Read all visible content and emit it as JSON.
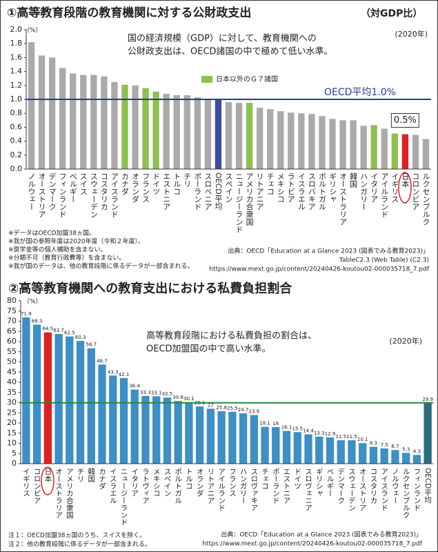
{
  "chart_data": [
    {
      "type": "bar",
      "title": "①高等教育段階の教育機関に対する公財政支出",
      "subtitle": "（対GDP比）",
      "unit": "（%）",
      "year": "(2020年)",
      "description": [
        "国の経済規模（GDP）に対して、教育機関への",
        "公財政支出は、OECD諸国の中で極めて低い水準。"
      ],
      "categories": [
        "ノルウェー",
        "オーストリア",
        "デンマーク",
        "フィンランド",
        "ベルギー",
        "スイス",
        "スウェーデン",
        "コスタリカ",
        "アイスランド",
        "カナダ",
        "オランダ",
        "フランス",
        "ドイツ",
        "エストニア",
        "トルコ",
        "チリ",
        "ポーランド",
        "スロベニア",
        "OECD平均",
        "スペイン",
        "ニュージーランド",
        "アメリカ合衆国",
        "リトアニア",
        "チェコ",
        "メキシコ",
        "ラトビア",
        "イスラエル",
        "スロバキア",
        "ポルトガル",
        "ギリシャ",
        "オーストラリア",
        "韓国",
        "ハンガリー",
        "イタリア",
        "アイルランド",
        "イギリス",
        "日本",
        "コロンビア",
        "ルクセンブルク"
      ],
      "values": [
        1.82,
        1.63,
        1.6,
        1.45,
        1.37,
        1.35,
        1.35,
        1.33,
        1.25,
        1.21,
        1.2,
        1.16,
        1.11,
        1.08,
        1.06,
        1.06,
        1.03,
        1.01,
        1.0,
        0.96,
        0.95,
        0.95,
        0.88,
        0.86,
        0.83,
        0.81,
        0.8,
        0.79,
        0.76,
        0.72,
        0.7,
        0.7,
        0.62,
        0.63,
        0.58,
        0.51,
        0.5,
        0.49,
        0.43
      ],
      "colors": [
        "#aaa",
        "#aaa",
        "#aaa",
        "#aaa",
        "#aaa",
        "#aaa",
        "#aaa",
        "#aaa",
        "#aaa",
        "#8dc050",
        "#aaa",
        "#8dc050",
        "#8dc050",
        "#aaa",
        "#aaa",
        "#aaa",
        "#aaa",
        "#aaa",
        "#3c4ea0",
        "#aaa",
        "#aaa",
        "#8dc050",
        "#aaa",
        "#aaa",
        "#aaa",
        "#aaa",
        "#aaa",
        "#aaa",
        "#aaa",
        "#aaa",
        "#aaa",
        "#aaa",
        "#aaa",
        "#8dc050",
        "#aaa",
        "#8dc050",
        "#e02020",
        "#aaa",
        "#aaa"
      ],
      "value_labels": [
        null,
        null,
        null,
        null,
        null,
        null,
        null,
        null,
        null,
        null,
        null,
        null,
        null,
        null,
        null,
        null,
        null,
        null,
        null,
        null,
        null,
        null,
        null,
        null,
        null,
        null,
        null,
        null,
        null,
        null,
        null,
        null,
        null,
        null,
        null,
        null,
        "0.5%",
        null,
        null
      ],
      "ylim": [
        0,
        2
      ],
      "yticks": [
        {
          "value": 0,
          "label": "0.0"
        },
        0.2,
        0.4,
        0.6,
        0.8,
        {
          "value": 1,
          "label": "1.0"
        },
        1.2,
        1.4,
        1.6,
        1.8,
        {
          "value": 2,
          "label": "2.0"
        }
      ],
      "reference_line": {
        "value": 1.0,
        "label": "OECD平均1.0%",
        "color": "#2b3a8f"
      },
      "legend": [
        {
          "name": "日本以外のＧ７諸国",
          "color": "#8dc050"
        }
      ],
      "notes": [
        "※データはOECD加盟38ヵ国。",
        "※我が国の参照年度は2020年度（令和２年度）。",
        "※奨学金等の個人補助を含まない。",
        "※分類不可（教育行政費等）を含まない。",
        "※我が国のデータは、他の教育段階に係るデータが一部含まれる。"
      ],
      "source": [
        "出典：OECD「Education at a Glance 2023 (図表でみる教育2023)」",
        "TableC2.3 (Web Table) (C2.3)",
        "https://www.mext.go.jp/content/20240426-koutou02-000035718_7.pdf"
      ]
    },
    {
      "type": "bar",
      "title": "②高等教育機関への教育支出における私費負担割合",
      "unit": "（%）",
      "year": "(2020年)",
      "description": [
        "高等教育段階における私費負担の割合は、",
        "OECD加盟国の中で高い水準。"
      ],
      "categories": [
        "イギリス",
        "コロンビア",
        "日本",
        "オーストラリア",
        "アメリカ合衆国",
        "チリ",
        "韓国",
        "カナダ",
        "イスラエル",
        "ニュージーランド",
        "イタリア",
        "ラトヴィア",
        "メキシコ",
        "スペイン",
        "ポルトガル",
        "トルコ",
        "オランダ",
        "リトアニア",
        "アイルランド",
        "フランス",
        "ハンガリー",
        "スロヴァキア",
        "チェコ",
        "ポーランド",
        "エストニア",
        "ドイツ",
        "スロヴェニア",
        "ギリシャ",
        "ベルギー",
        "デンマーク",
        "スウェーデン",
        "オーストリア",
        "コスタリカ",
        "アイスランド",
        "ノルウェー",
        "ルクセンブルク",
        "フィンランド",
        "OECD平均"
      ],
      "values": [
        71.9,
        68.3,
        64.5,
        63.7,
        62.5,
        60.3,
        56.7,
        48.7,
        43.3,
        42.1,
        36.4,
        33.3,
        33.1,
        32.5,
        30.8,
        30.1,
        28.1,
        27.0,
        25.8,
        25.5,
        24.7,
        23.9,
        18.1,
        18.0,
        16.1,
        15.5,
        14.4,
        13.3,
        12.9,
        11.5,
        11.5,
        10.1,
        8.3,
        7.5,
        6.7,
        5.3,
        4.3,
        29.9
      ],
      "colors": [
        "#3d8fc6",
        "#3d8fc6",
        "#e02020",
        "#3d8fc6",
        "#3d8fc6",
        "#3d8fc6",
        "#3d8fc6",
        "#3d8fc6",
        "#3d8fc6",
        "#3d8fc6",
        "#3d8fc6",
        "#3d8fc6",
        "#3d8fc6",
        "#3d8fc6",
        "#3d8fc6",
        "#3d8fc6",
        "#3d8fc6",
        "#3d8fc6",
        "#3d8fc6",
        "#3d8fc6",
        "#3d8fc6",
        "#3d8fc6",
        "#3d8fc6",
        "#3d8fc6",
        "#3d8fc6",
        "#3d8fc6",
        "#3d8fc6",
        "#3d8fc6",
        "#3d8fc6",
        "#3d8fc6",
        "#3d8fc6",
        "#3d8fc6",
        "#3d8fc6",
        "#3d8fc6",
        "#3d8fc6",
        "#3d8fc6",
        "#3d8fc6",
        "#2d6e7e"
      ],
      "ylim": [
        0,
        80
      ],
      "yticks": [
        0,
        5,
        10,
        15,
        20,
        25,
        30,
        35,
        40,
        45,
        50,
        55,
        60,
        65,
        70,
        75,
        80
      ],
      "reference_line": {
        "value": 29.9,
        "color": "#1e8a3a"
      },
      "notes": [
        "注１：OECD加盟38ヵ国のうち、スイスを除く。",
        "注２：他の教育段階に係るデータが一部含まれる。"
      ],
      "source": [
        "出典：OECD「Education at a Glance 2023 (図表でみる教育2023)」",
        "https://www.mext.go.jp/content/20240426-koutou02-000035718_7.pdf"
      ]
    }
  ]
}
